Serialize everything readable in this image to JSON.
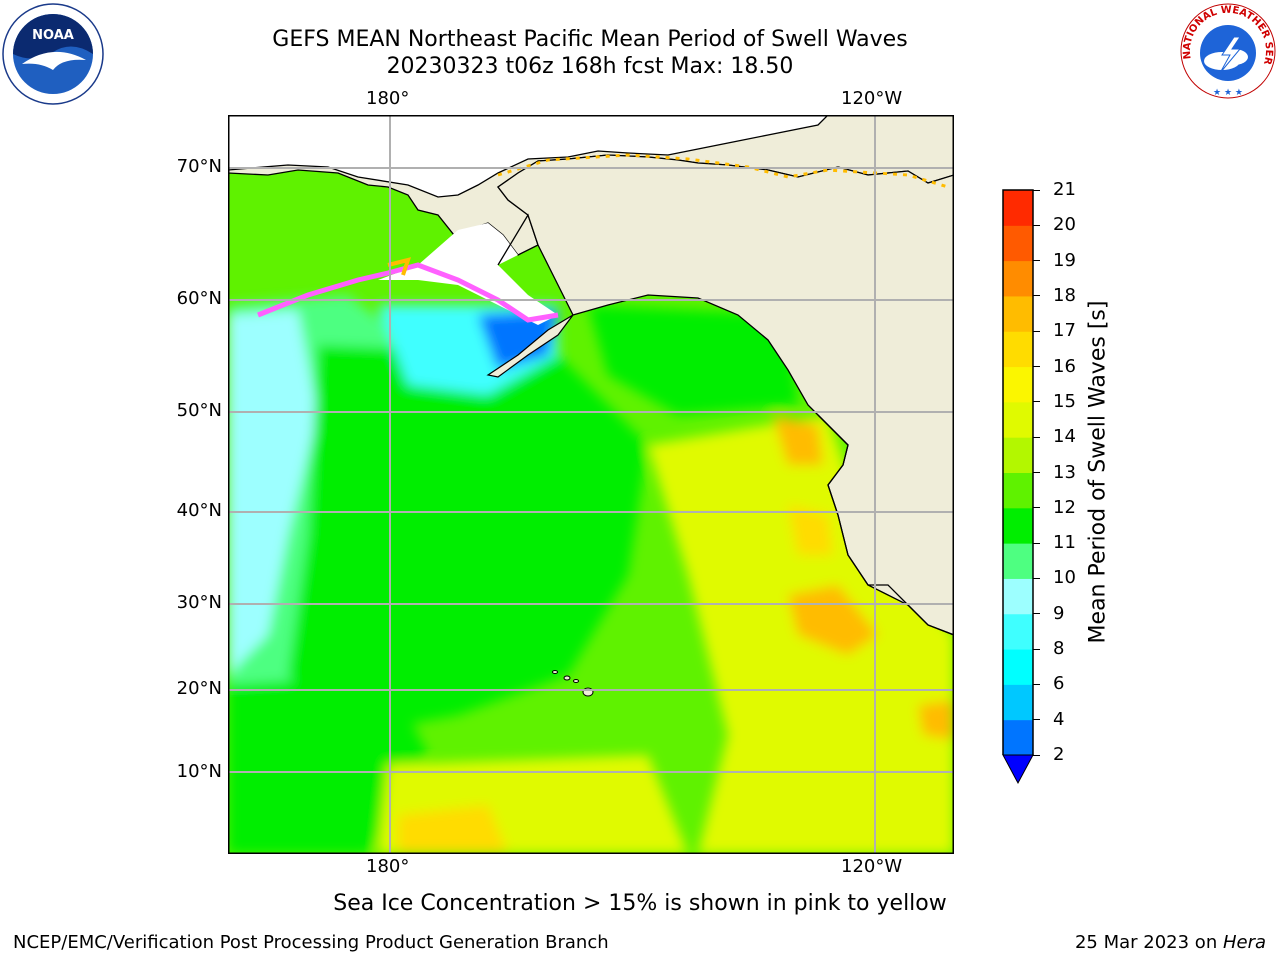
{
  "title_line1": "GEFS MEAN Northeast Pacific Mean Period of Swell Waves",
  "title_line2": "20230323 t06z 168h fcst   Max: 18.50",
  "axes": {
    "lon_top": [
      "180°",
      "120°W"
    ],
    "lon_bottom": [
      "180°",
      "120°W"
    ],
    "lat": [
      "70°N",
      "60°N",
      "50°N",
      "40°N",
      "30°N",
      "20°N",
      "10°N"
    ]
  },
  "colorbar": {
    "label": "Mean Period of Swell Waves [s]",
    "ticks": [
      "2",
      "4",
      "6",
      "8",
      "9",
      "10",
      "11",
      "12",
      "13",
      "14",
      "15",
      "16",
      "17",
      "18",
      "19",
      "20",
      "21"
    ],
    "colors": [
      "#0075ff",
      "#00c8ff",
      "#00ffff",
      "#3fffff",
      "#9dffff",
      "#4eff81",
      "#00ee00",
      "#5ff200",
      "#b3f700",
      "#e0fa00",
      "#fbf600",
      "#ffdc00",
      "#ffbc00",
      "#ff8c00",
      "#ff5a00",
      "#ff2a00"
    ],
    "extend_color": "#0000ff"
  },
  "legend_note": "Sea Ice Concentration > 15% is shown in pink to yellow",
  "footer_left": "NCEP/EMC/Verification Post Processing Product Generation Branch",
  "footer_right_prefix": "25 Mar 2023 on ",
  "footer_right_host": "Hera",
  "logos": {
    "noaa_text": "NOAA",
    "nws_text": "NATIONAL WEATHER SERVICE"
  },
  "map_colors": {
    "land": "#efedd9",
    "ice_free": "#ffffff",
    "grid": "#b0b0b0",
    "coast": "#000000"
  }
}
